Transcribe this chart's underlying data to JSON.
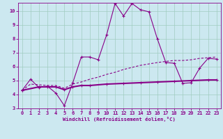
{
  "xlabel": "Windchill (Refroidissement éolien,°C)",
  "bg_color": "#cce8f0",
  "grid_color": "#a0ccc0",
  "line_color": "#880088",
  "xlim": [
    -0.5,
    23.5
  ],
  "ylim": [
    3,
    10.6
  ],
  "xticks": [
    0,
    1,
    2,
    3,
    4,
    5,
    6,
    7,
    8,
    9,
    10,
    11,
    12,
    13,
    14,
    15,
    16,
    17,
    18,
    19,
    20,
    21,
    22,
    23
  ],
  "yticks": [
    3,
    4,
    5,
    6,
    7,
    8,
    9,
    10
  ],
  "line1_x": [
    0,
    1,
    2,
    3,
    4,
    5,
    6,
    7,
    8,
    9,
    10,
    11,
    12,
    13,
    14,
    15,
    16,
    17,
    18,
    19,
    20,
    21,
    22,
    23
  ],
  "line1_y": [
    4.3,
    5.1,
    4.5,
    4.6,
    4.1,
    3.2,
    4.85,
    6.7,
    6.7,
    6.5,
    8.3,
    10.55,
    9.65,
    10.55,
    10.1,
    9.95,
    8.0,
    6.3,
    6.25,
    4.8,
    4.85,
    5.9,
    6.6,
    6.55
  ],
  "line2_x": [
    0,
    2,
    3,
    4,
    5,
    6,
    7,
    8,
    10,
    12,
    14,
    16,
    18,
    20,
    22,
    23
  ],
  "line2_y": [
    4.3,
    4.55,
    4.55,
    4.55,
    4.35,
    4.55,
    4.65,
    4.65,
    4.75,
    4.8,
    4.85,
    4.9,
    4.95,
    5.0,
    5.05,
    5.05
  ],
  "line3_x": [
    0,
    1,
    2,
    3,
    4,
    5,
    6,
    7,
    8,
    9,
    10,
    11,
    12,
    13,
    14,
    15,
    16,
    17,
    18,
    19,
    20,
    21,
    22,
    23
  ],
  "line3_y": [
    4.3,
    4.75,
    4.7,
    4.65,
    4.65,
    4.45,
    4.75,
    4.9,
    5.1,
    5.25,
    5.45,
    5.6,
    5.8,
    5.95,
    6.1,
    6.2,
    6.3,
    6.38,
    6.45,
    6.45,
    6.5,
    6.6,
    6.65,
    6.7
  ]
}
